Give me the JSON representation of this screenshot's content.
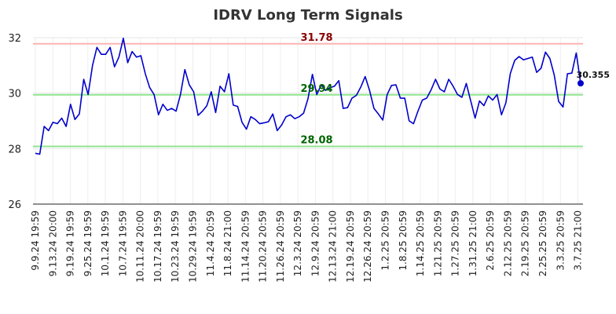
{
  "chart_data": {
    "type": "line",
    "title": "IDRV Long Term Signals",
    "xlabel": "",
    "ylabel": "",
    "ylim": [
      26,
      32
    ],
    "y_ticks": [
      "26",
      "28",
      "30",
      "32"
    ],
    "grid": true,
    "line_color": "#0000cc",
    "x_ticks": [
      "9.9.24 19:59",
      "9.13.24 20:00",
      "9.19.24 19:59",
      "9.25.24 19:59",
      "10.1.24 19:59",
      "10.7.24 19:59",
      "10.11.24 20:00",
      "10.17.24 19:59",
      "10.23.24 19:59",
      "10.29.24 19:59",
      "11.4.24 20:59",
      "11.8.24 21:00",
      "11.14.24 20:59",
      "11.20.24 20:59",
      "11.26.24 20:59",
      "12.3.24 20:59",
      "12.9.24 20:59",
      "12.13.24 21:00",
      "12.19.24 20:59",
      "12.26.24 20:59",
      "1.2.25 20:59",
      "1.8.25 20:59",
      "1.14.25 20:59",
      "1.21.25 20:59",
      "1.27.25 20:59",
      "1.31.25 21:00",
      "2.6.25 20:59",
      "2.12.25 20:59",
      "2.19.25 20:59",
      "2.25.25 20:59",
      "3.3.25 20:59",
      "3.7.25 21:00"
    ],
    "values": [
      27.83,
      27.8,
      28.8,
      28.65,
      28.95,
      28.9,
      29.1,
      28.8,
      29.6,
      29.05,
      29.25,
      30.5,
      29.95,
      31.0,
      31.65,
      31.4,
      31.4,
      31.65,
      30.95,
      31.3,
      31.98,
      31.1,
      31.5,
      31.3,
      31.35,
      30.7,
      30.2,
      29.95,
      29.22,
      29.6,
      29.38,
      29.45,
      29.35,
      29.95,
      30.85,
      30.3,
      30.05,
      29.2,
      29.35,
      29.55,
      30.05,
      29.3,
      30.25,
      30.05,
      30.7,
      29.57,
      29.52,
      28.95,
      28.7,
      29.15,
      29.05,
      28.9,
      28.93,
      28.97,
      29.25,
      28.65,
      28.85,
      29.15,
      29.22,
      29.08,
      29.15,
      29.28,
      29.8,
      30.68,
      29.95,
      30.3,
      30.1,
      30.2,
      30.25,
      30.45,
      29.45,
      29.48,
      29.82,
      29.92,
      30.22,
      30.6,
      30.1,
      29.45,
      29.25,
      29.03,
      29.95,
      30.28,
      30.3,
      29.82,
      29.82,
      29.0,
      28.9,
      29.35,
      29.75,
      29.82,
      30.12,
      30.5,
      30.15,
      30.05,
      30.5,
      30.25,
      29.95,
      29.85,
      30.35,
      29.72,
      29.1,
      29.72,
      29.55,
      29.9,
      29.75,
      29.95,
      29.22,
      29.65,
      30.7,
      31.18,
      31.32,
      31.2,
      31.25,
      31.3,
      30.75,
      30.9,
      31.48,
      31.25,
      30.65,
      29.7,
      29.5,
      30.7,
      30.72,
      31.45,
      30.355
    ],
    "reference_lines": [
      {
        "value": 31.78,
        "label": "31.78",
        "line_color": "#ffb3b3",
        "label_color": "#8b0000"
      },
      {
        "value": 29.94,
        "label": "29.94",
        "line_color": "#8fe58f",
        "label_color": "#006400"
      },
      {
        "value": 28.08,
        "label": "28.08",
        "line_color": "#8fe58f",
        "label_color": "#006400"
      }
    ],
    "last_point": {
      "value": 30.355,
      "label": "30.355",
      "marker_color": "#0000cc"
    }
  }
}
